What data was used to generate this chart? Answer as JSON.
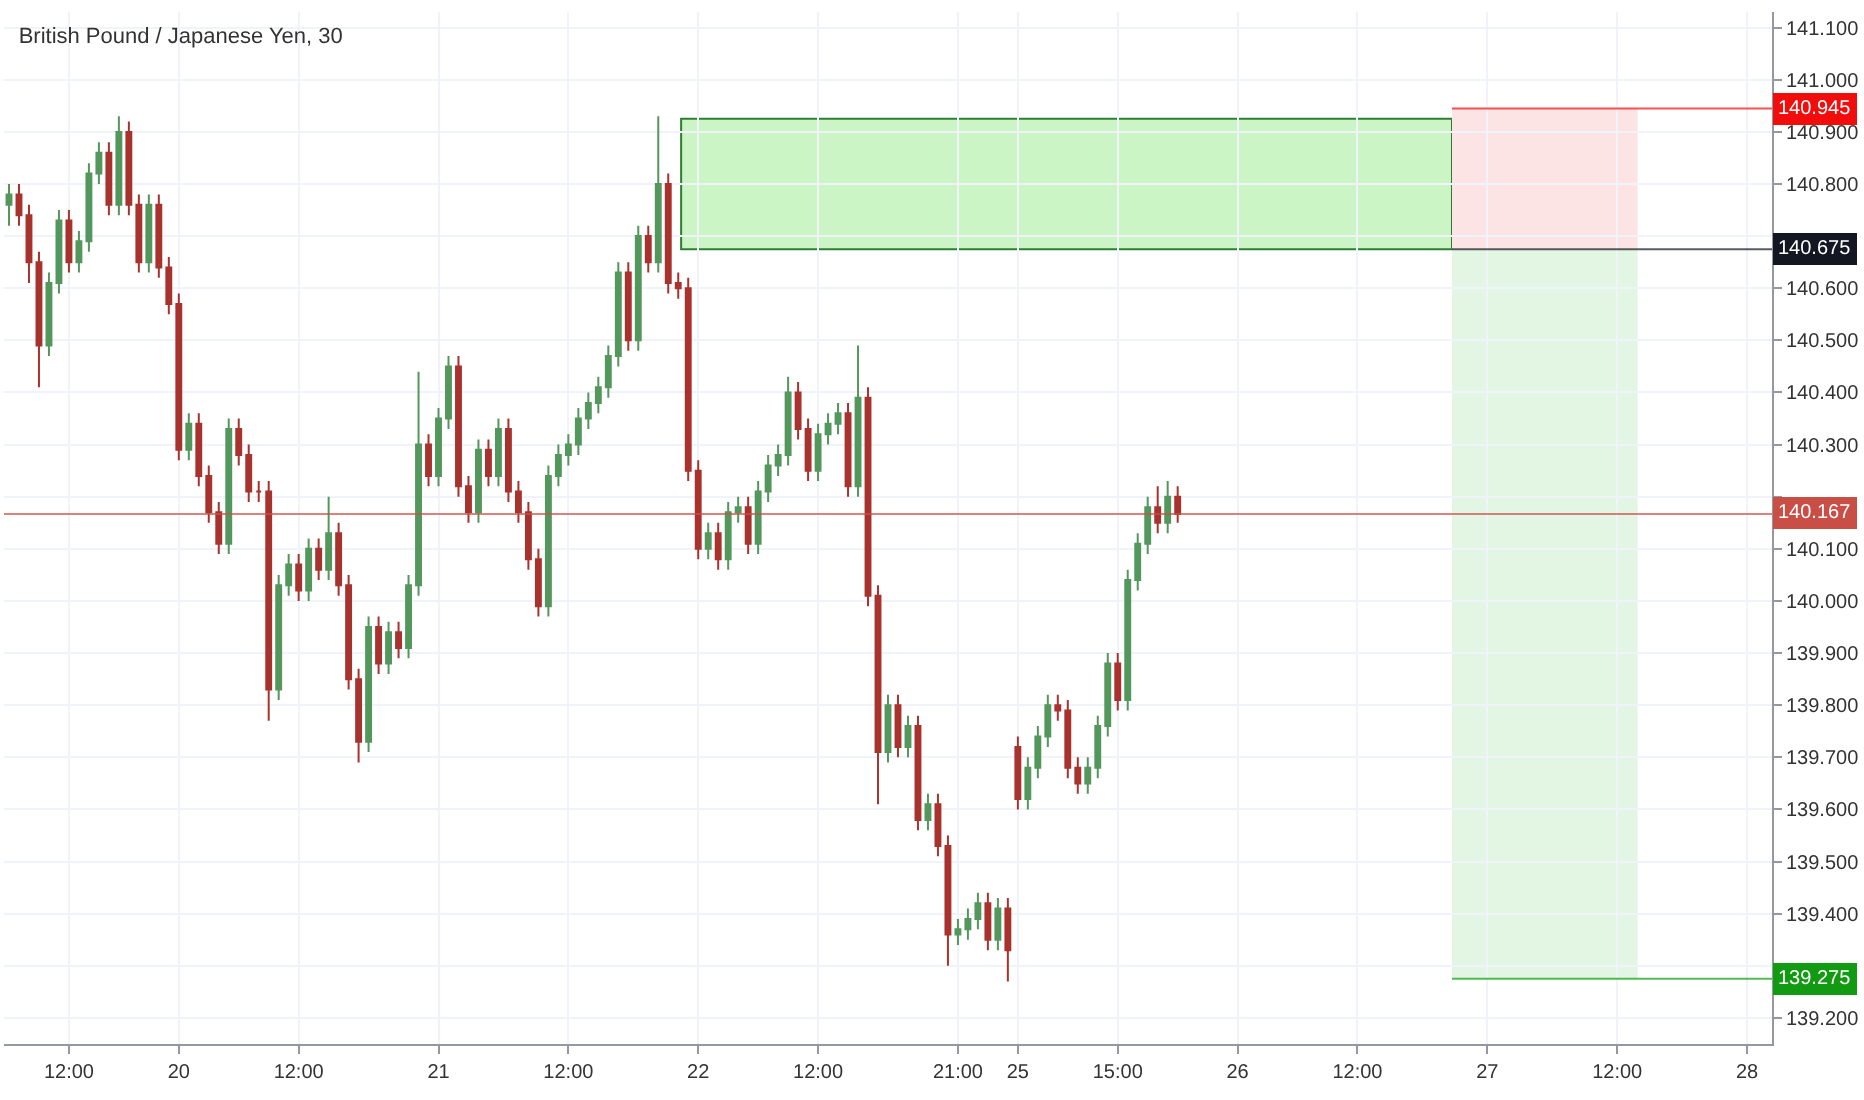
{
  "chart_data": {
    "type": "candlestick",
    "title": "British Pound / Japanese Yen, 30",
    "categories": [
      null,
      null,
      null,
      null,
      null,
      null,
      "12:00",
      null,
      null,
      null,
      null,
      null,
      null,
      null,
      null,
      null,
      null,
      "20",
      null,
      null,
      null,
      null,
      null,
      null,
      null,
      null,
      null,
      null,
      null,
      "12:00",
      null,
      null,
      null,
      null,
      null,
      null,
      null,
      null,
      null,
      null,
      null,
      null,
      null,
      "21",
      null,
      null,
      null,
      null,
      null,
      null,
      null,
      null,
      null,
      null,
      null,
      null,
      "12:00",
      null,
      null,
      null,
      null,
      null,
      null,
      null,
      null,
      null,
      null,
      null,
      null,
      "22",
      null,
      null,
      null,
      null,
      null,
      null,
      null,
      null,
      null,
      null,
      null,
      "12:00",
      null,
      null,
      null,
      null,
      null,
      null,
      null,
      null,
      null,
      null,
      null,
      null,
      null,
      "21:00",
      null,
      null,
      null,
      null,
      null,
      "25",
      null,
      null,
      null,
      null,
      null,
      null,
      null,
      null,
      null,
      "15:00",
      null,
      null,
      null,
      null,
      null,
      null,
      null,
      null,
      null,
      null,
      null,
      "26",
      null,
      null,
      null,
      null,
      null,
      null,
      null,
      null,
      null,
      null,
      null,
      "12:00",
      null,
      null,
      null,
      null,
      null,
      null,
      null,
      null,
      null,
      null,
      null,
      null,
      "27",
      null,
      null,
      null,
      null,
      null,
      null,
      null,
      null,
      null,
      null,
      null,
      null,
      "12:00",
      null,
      null,
      null,
      null,
      null,
      null,
      null,
      null,
      null,
      null,
      null,
      null,
      "28",
      null,
      null
    ],
    "ohlc": [
      [
        140.76,
        140.8,
        140.72,
        140.78
      ],
      [
        140.78,
        140.8,
        140.72,
        140.74
      ],
      [
        140.74,
        140.76,
        140.61,
        140.65
      ],
      [
        140.65,
        140.67,
        140.41,
        140.49
      ],
      [
        140.49,
        140.63,
        140.47,
        140.61
      ],
      [
        140.61,
        140.75,
        140.59,
        140.73
      ],
      [
        140.73,
        140.75,
        140.63,
        140.65
      ],
      [
        140.65,
        140.71,
        140.63,
        140.69
      ],
      [
        140.69,
        140.84,
        140.67,
        140.82
      ],
      [
        140.82,
        140.88,
        140.8,
        140.86
      ],
      [
        140.86,
        140.88,
        140.74,
        140.76
      ],
      [
        140.76,
        140.93,
        140.74,
        140.9
      ],
      [
        140.9,
        140.92,
        140.74,
        140.76
      ],
      [
        140.76,
        140.78,
        140.63,
        140.65
      ],
      [
        140.65,
        140.78,
        140.63,
        140.76
      ],
      [
        140.76,
        140.78,
        140.62,
        140.64
      ],
      [
        140.64,
        140.66,
        140.55,
        140.57
      ],
      [
        140.57,
        140.59,
        140.27,
        140.29
      ],
      [
        140.29,
        140.36,
        140.27,
        140.34
      ],
      [
        140.34,
        140.36,
        140.22,
        140.24
      ],
      [
        140.24,
        140.26,
        140.15,
        140.17
      ],
      [
        140.17,
        140.19,
        140.09,
        140.11
      ],
      [
        140.11,
        140.35,
        140.09,
        140.33
      ],
      [
        140.33,
        140.35,
        140.26,
        140.28
      ],
      [
        140.28,
        140.3,
        140.19,
        140.21
      ],
      [
        140.21,
        140.23,
        140.19,
        140.21
      ],
      [
        140.21,
        140.23,
        139.77,
        139.83
      ],
      [
        139.83,
        140.05,
        139.81,
        140.03
      ],
      [
        140.03,
        140.09,
        140.01,
        140.07
      ],
      [
        140.07,
        140.09,
        140.0,
        140.02
      ],
      [
        140.02,
        140.12,
        140.0,
        140.1
      ],
      [
        140.1,
        140.12,
        140.04,
        140.06
      ],
      [
        140.06,
        140.2,
        140.04,
        140.13
      ],
      [
        140.13,
        140.15,
        140.01,
        140.03
      ],
      [
        140.03,
        140.05,
        139.83,
        139.85
      ],
      [
        139.85,
        139.87,
        139.69,
        139.73
      ],
      [
        139.73,
        139.97,
        139.71,
        139.95
      ],
      [
        139.95,
        139.97,
        139.86,
        139.88
      ],
      [
        139.88,
        139.96,
        139.86,
        139.94
      ],
      [
        139.94,
        139.96,
        139.89,
        139.91
      ],
      [
        139.91,
        140.05,
        139.89,
        140.03
      ],
      [
        140.03,
        140.44,
        140.01,
        140.3
      ],
      [
        140.3,
        140.32,
        140.22,
        140.24
      ],
      [
        140.24,
        140.37,
        140.22,
        140.35
      ],
      [
        140.35,
        140.47,
        140.33,
        140.45
      ],
      [
        140.45,
        140.47,
        140.2,
        140.22
      ],
      [
        140.22,
        140.24,
        140.15,
        140.17
      ],
      [
        140.17,
        140.31,
        140.15,
        140.29
      ],
      [
        140.29,
        140.31,
        140.22,
        140.24
      ],
      [
        140.24,
        140.35,
        140.22,
        140.33
      ],
      [
        140.33,
        140.35,
        140.19,
        140.21
      ],
      [
        140.21,
        140.23,
        140.15,
        140.17
      ],
      [
        140.17,
        140.19,
        140.06,
        140.08
      ],
      [
        140.08,
        140.1,
        139.97,
        139.99
      ],
      [
        139.99,
        140.26,
        139.97,
        140.24
      ],
      [
        140.24,
        140.3,
        140.22,
        140.28
      ],
      [
        140.28,
        140.32,
        140.26,
        140.3
      ],
      [
        140.3,
        140.37,
        140.28,
        140.35
      ],
      [
        140.35,
        140.4,
        140.33,
        140.38
      ],
      [
        140.38,
        140.43,
        140.36,
        140.41
      ],
      [
        140.41,
        140.49,
        140.39,
        140.47
      ],
      [
        140.47,
        140.65,
        140.45,
        140.63
      ],
      [
        140.63,
        140.65,
        140.48,
        140.5
      ],
      [
        140.5,
        140.72,
        140.48,
        140.7
      ],
      [
        140.7,
        140.72,
        140.63,
        140.65
      ],
      [
        140.65,
        140.93,
        140.63,
        140.8
      ],
      [
        140.8,
        140.82,
        140.59,
        140.61
      ],
      [
        140.61,
        140.63,
        140.58,
        140.6
      ],
      [
        140.6,
        140.62,
        140.23,
        140.25
      ],
      [
        140.25,
        140.27,
        140.08,
        140.1
      ],
      [
        140.1,
        140.15,
        140.08,
        140.13
      ],
      [
        140.13,
        140.15,
        140.06,
        140.08
      ],
      [
        140.08,
        140.19,
        140.06,
        140.17
      ],
      [
        140.17,
        140.2,
        140.15,
        140.18
      ],
      [
        140.18,
        140.2,
        140.09,
        140.11
      ],
      [
        140.11,
        140.23,
        140.09,
        140.21
      ],
      [
        140.21,
        140.28,
        140.19,
        140.26
      ],
      [
        140.26,
        140.3,
        140.24,
        140.28
      ],
      [
        140.28,
        140.43,
        140.26,
        140.4
      ],
      [
        140.4,
        140.42,
        140.31,
        140.33
      ],
      [
        140.33,
        140.35,
        140.23,
        140.25
      ],
      [
        140.25,
        140.34,
        140.23,
        140.32
      ],
      [
        140.32,
        140.36,
        140.3,
        140.34
      ],
      [
        140.34,
        140.38,
        140.32,
        140.36
      ],
      [
        140.36,
        140.38,
        140.2,
        140.22
      ],
      [
        140.22,
        140.49,
        140.2,
        140.39
      ],
      [
        140.39,
        140.41,
        139.99,
        140.01
      ],
      [
        140.01,
        140.03,
        139.61,
        139.71
      ],
      [
        139.71,
        139.82,
        139.69,
        139.8
      ],
      [
        139.8,
        139.82,
        139.7,
        139.72
      ],
      [
        139.72,
        139.78,
        139.7,
        139.76
      ],
      [
        139.76,
        139.78,
        139.56,
        139.58
      ],
      [
        139.58,
        139.63,
        139.56,
        139.61
      ],
      [
        139.61,
        139.63,
        139.51,
        139.53
      ],
      [
        139.53,
        139.55,
        139.3,
        139.36
      ],
      [
        139.36,
        139.39,
        139.34,
        139.37
      ],
      [
        139.37,
        139.41,
        139.35,
        139.39
      ],
      [
        139.39,
        139.44,
        139.37,
        139.42
      ],
      [
        139.42,
        139.44,
        139.33,
        139.35
      ],
      [
        139.35,
        139.43,
        139.33,
        139.41
      ],
      [
        139.41,
        139.43,
        139.27,
        139.33
      ],
      [
        139.72,
        139.74,
        139.6,
        139.62
      ],
      [
        139.62,
        139.7,
        139.6,
        139.68
      ],
      [
        139.68,
        139.76,
        139.66,
        139.74
      ],
      [
        139.74,
        139.82,
        139.72,
        139.8
      ],
      [
        139.8,
        139.82,
        139.77,
        139.79
      ],
      [
        139.79,
        139.81,
        139.66,
        139.68
      ],
      [
        139.68,
        139.7,
        139.63,
        139.65
      ],
      [
        139.65,
        139.7,
        139.63,
        139.68
      ],
      [
        139.68,
        139.78,
        139.66,
        139.76
      ],
      [
        139.76,
        139.9,
        139.74,
        139.88
      ],
      [
        139.88,
        139.9,
        139.79,
        139.81
      ],
      [
        139.81,
        140.06,
        139.79,
        140.04
      ],
      [
        140.04,
        140.13,
        140.02,
        140.11
      ],
      [
        140.11,
        140.2,
        140.09,
        140.18
      ],
      [
        140.18,
        140.22,
        140.13,
        140.15
      ],
      [
        140.15,
        140.23,
        140.13,
        140.2
      ],
      [
        140.2,
        140.22,
        140.15,
        140.167
      ],
      null,
      null,
      null,
      null,
      null,
      null,
      null,
      null,
      null,
      null,
      null,
      null,
      null,
      null,
      null,
      null,
      null,
      null,
      null,
      null,
      null,
      null,
      null,
      null,
      null,
      null,
      null,
      null,
      null,
      null,
      null,
      null,
      null,
      null,
      null,
      null,
      null,
      null,
      null,
      null,
      null,
      null,
      null,
      null,
      null,
      null,
      null,
      null,
      null,
      null,
      null,
      null,
      null,
      null,
      null,
      null,
      null,
      null,
      null
    ],
    "ylim": [
      139.15,
      141.13
    ],
    "yticks": [
      {
        "value": 139.2,
        "label": "139.200"
      },
      {
        "value": 139.3,
        "label": null
      },
      {
        "value": 139.4,
        "label": "139.400"
      },
      {
        "value": 139.5,
        "label": "139.500"
      },
      {
        "value": 139.6,
        "label": "139.600"
      },
      {
        "value": 139.7,
        "label": "139.700"
      },
      {
        "value": 139.8,
        "label": "139.800"
      },
      {
        "value": 139.9,
        "label": "139.900"
      },
      {
        "value": 140.0,
        "label": "140.000"
      },
      {
        "value": 140.1,
        "label": "140.100"
      },
      {
        "value": 140.2,
        "label": null
      },
      {
        "value": 140.3,
        "label": "140.300"
      },
      {
        "value": 140.4,
        "label": "140.400"
      },
      {
        "value": 140.5,
        "label": "140.500"
      },
      {
        "value": 140.6,
        "label": "140.600"
      },
      {
        "value": 140.7,
        "label": null
      },
      {
        "value": 140.8,
        "label": "140.800"
      },
      {
        "value": 140.9,
        "label": "140.900"
      },
      {
        "value": 141.0,
        "label": "141.000"
      },
      {
        "value": 141.1,
        "label": "141.100"
      }
    ],
    "grid": true,
    "ref_lines": [
      {
        "axis": "y",
        "value": 140.945,
        "label": "140.945",
        "color": "#f20d0d"
      },
      {
        "axis": "y",
        "value": 140.675,
        "label": "140.675",
        "color": "#131722"
      },
      {
        "axis": "y",
        "value": 140.167,
        "label": "140.167",
        "color": "#c94f46"
      },
      {
        "axis": "y",
        "value": 139.275,
        "label": "139.275",
        "color": "#129b12"
      }
    ],
    "bands": [
      {
        "axis": "y",
        "from": 140.675,
        "to": 140.925,
        "color": "#ccf5c6"
      },
      {
        "axis": "y",
        "from": 140.675,
        "to": 140.945,
        "color": "#fde4e4"
      },
      {
        "axis": "y",
        "from": 139.275,
        "to": 140.675,
        "color": "#e3f5e3"
      }
    ]
  }
}
